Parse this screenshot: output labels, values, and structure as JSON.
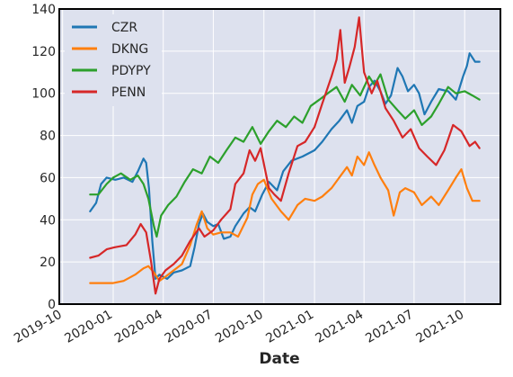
{
  "chart_data": {
    "type": "line",
    "title": "",
    "xlabel": "Date",
    "ylabel": "",
    "ylim": [
      0,
      140
    ],
    "yticks": [
      0,
      20,
      40,
      60,
      80,
      100,
      120,
      140
    ],
    "xticks": [
      "2019-10",
      "2020-01",
      "2020-04",
      "2020-07",
      "2020-10",
      "2021-01",
      "2021-04",
      "2021-07",
      "2021-10"
    ],
    "xlim": [
      "2019-09-25",
      "2021-12-05"
    ],
    "grid": true,
    "legend_position": "top-left",
    "background_color": "#dde1ee",
    "series": [
      {
        "name": "CZR",
        "color": "#1f77b4",
        "points": [
          [
            "2019-11-20",
            44
          ],
          [
            "2019-12-01",
            48
          ],
          [
            "2019-12-10",
            57
          ],
          [
            "2019-12-20",
            60
          ],
          [
            "2020-01-05",
            59
          ],
          [
            "2020-01-20",
            60
          ],
          [
            "2020-02-05",
            58
          ],
          [
            "2020-02-15",
            63
          ],
          [
            "2020-02-25",
            69
          ],
          [
            "2020-03-01",
            67
          ],
          [
            "2020-03-06",
            55
          ],
          [
            "2020-03-12",
            30
          ],
          [
            "2020-03-18",
            12
          ],
          [
            "2020-03-25",
            14
          ],
          [
            "2020-04-08",
            12
          ],
          [
            "2020-04-20",
            15
          ],
          [
            "2020-05-05",
            16
          ],
          [
            "2020-05-20",
            18
          ],
          [
            "2020-05-28",
            27
          ],
          [
            "2020-06-05",
            38
          ],
          [
            "2020-06-12",
            43
          ],
          [
            "2020-06-20",
            39
          ],
          [
            "2020-07-01",
            37
          ],
          [
            "2020-07-10",
            38
          ],
          [
            "2020-07-20",
            31
          ],
          [
            "2020-08-01",
            32
          ],
          [
            "2020-08-10",
            37
          ],
          [
            "2020-08-25",
            43
          ],
          [
            "2020-09-05",
            46
          ],
          [
            "2020-09-15",
            44
          ],
          [
            "2020-09-28",
            52
          ],
          [
            "2020-10-10",
            58
          ],
          [
            "2020-10-25",
            54
          ],
          [
            "2020-11-05",
            63
          ],
          [
            "2020-11-20",
            68
          ],
          [
            "2020-12-10",
            70
          ],
          [
            "2021-01-01",
            73
          ],
          [
            "2021-01-15",
            77
          ],
          [
            "2021-02-01",
            83
          ],
          [
            "2021-02-15",
            87
          ],
          [
            "2021-03-01",
            92
          ],
          [
            "2021-03-10",
            86
          ],
          [
            "2021-03-20",
            94
          ],
          [
            "2021-04-01",
            96
          ],
          [
            "2021-04-10",
            103
          ],
          [
            "2021-04-20",
            106
          ],
          [
            "2021-05-01",
            101
          ],
          [
            "2021-05-10",
            95
          ],
          [
            "2021-05-20",
            99
          ],
          [
            "2021-06-01",
            112
          ],
          [
            "2021-06-10",
            108
          ],
          [
            "2021-06-20",
            101
          ],
          [
            "2021-07-01",
            104
          ],
          [
            "2021-07-10",
            100
          ],
          [
            "2021-07-20",
            90
          ],
          [
            "2021-08-01",
            96
          ],
          [
            "2021-08-15",
            102
          ],
          [
            "2021-09-01",
            101
          ],
          [
            "2021-09-15",
            97
          ],
          [
            "2021-09-28",
            108
          ],
          [
            "2021-10-05",
            113
          ],
          [
            "2021-10-10",
            119
          ],
          [
            "2021-10-20",
            115
          ],
          [
            "2021-10-28",
            115
          ]
        ]
      },
      {
        "name": "DKNG",
        "color": "#ff7f0e",
        "points": [
          [
            "2019-11-20",
            10
          ],
          [
            "2019-12-15",
            10
          ],
          [
            "2020-01-01",
            10
          ],
          [
            "2020-01-20",
            11
          ],
          [
            "2020-02-10",
            14
          ],
          [
            "2020-02-25",
            17
          ],
          [
            "2020-03-05",
            18
          ],
          [
            "2020-03-15",
            15
          ],
          [
            "2020-03-25",
            11
          ],
          [
            "2020-04-05",
            13
          ],
          [
            "2020-04-20",
            16
          ],
          [
            "2020-05-05",
            19
          ],
          [
            "2020-05-20",
            28
          ],
          [
            "2020-06-01",
            38
          ],
          [
            "2020-06-10",
            44
          ],
          [
            "2020-06-20",
            36
          ],
          [
            "2020-07-01",
            33
          ],
          [
            "2020-07-15",
            34
          ],
          [
            "2020-08-01",
            34
          ],
          [
            "2020-08-15",
            32
          ],
          [
            "2020-09-01",
            41
          ],
          [
            "2020-09-10",
            52
          ],
          [
            "2020-09-20",
            57
          ],
          [
            "2020-10-01",
            59
          ],
          [
            "2020-10-15",
            50
          ],
          [
            "2020-11-01",
            44
          ],
          [
            "2020-11-15",
            40
          ],
          [
            "2020-12-01",
            47
          ],
          [
            "2020-12-15",
            50
          ],
          [
            "2021-01-01",
            49
          ],
          [
            "2021-01-15",
            51
          ],
          [
            "2021-02-01",
            55
          ],
          [
            "2021-02-15",
            60
          ],
          [
            "2021-03-01",
            65
          ],
          [
            "2021-03-10",
            61
          ],
          [
            "2021-03-20",
            70
          ],
          [
            "2021-04-01",
            66
          ],
          [
            "2021-04-10",
            72
          ],
          [
            "2021-04-20",
            66
          ],
          [
            "2021-05-01",
            60
          ],
          [
            "2021-05-15",
            54
          ],
          [
            "2021-05-25",
            42
          ],
          [
            "2021-06-05",
            53
          ],
          [
            "2021-06-15",
            55
          ],
          [
            "2021-07-01",
            53
          ],
          [
            "2021-07-15",
            47
          ],
          [
            "2021-08-01",
            51
          ],
          [
            "2021-08-15",
            47
          ],
          [
            "2021-09-01",
            54
          ],
          [
            "2021-09-15",
            60
          ],
          [
            "2021-09-25",
            64
          ],
          [
            "2021-10-05",
            55
          ],
          [
            "2021-10-15",
            49
          ],
          [
            "2021-10-28",
            49
          ]
        ]
      },
      {
        "name": "PDYPY",
        "color": "#2ca02c",
        "points": [
          [
            "2019-11-20",
            52
          ],
          [
            "2019-12-05",
            52
          ],
          [
            "2019-12-20",
            57
          ],
          [
            "2020-01-01",
            60
          ],
          [
            "2020-01-15",
            62
          ],
          [
            "2020-02-01",
            59
          ],
          [
            "2020-02-15",
            61
          ],
          [
            "2020-02-25",
            57
          ],
          [
            "2020-03-05",
            50
          ],
          [
            "2020-03-15",
            37
          ],
          [
            "2020-03-20",
            32
          ],
          [
            "2020-03-28",
            42
          ],
          [
            "2020-04-10",
            47
          ],
          [
            "2020-04-25",
            51
          ],
          [
            "2020-05-10",
            58
          ],
          [
            "2020-05-25",
            64
          ],
          [
            "2020-06-10",
            62
          ],
          [
            "2020-06-25",
            70
          ],
          [
            "2020-07-10",
            67
          ],
          [
            "2020-07-25",
            73
          ],
          [
            "2020-08-10",
            79
          ],
          [
            "2020-08-25",
            77
          ],
          [
            "2020-09-10",
            84
          ],
          [
            "2020-09-25",
            76
          ],
          [
            "2020-10-10",
            82
          ],
          [
            "2020-10-25",
            87
          ],
          [
            "2020-11-10",
            84
          ],
          [
            "2020-11-25",
            89
          ],
          [
            "2020-12-10",
            86
          ],
          [
            "2020-12-25",
            94
          ],
          [
            "2021-01-10",
            97
          ],
          [
            "2021-01-25",
            100
          ],
          [
            "2021-02-10",
            103
          ],
          [
            "2021-02-25",
            96
          ],
          [
            "2021-03-10",
            104
          ],
          [
            "2021-03-25",
            99
          ],
          [
            "2021-04-10",
            108
          ],
          [
            "2021-04-20",
            104
          ],
          [
            "2021-05-01",
            109
          ],
          [
            "2021-05-15",
            97
          ],
          [
            "2021-06-01",
            92
          ],
          [
            "2021-06-15",
            88
          ],
          [
            "2021-07-01",
            92
          ],
          [
            "2021-07-15",
            85
          ],
          [
            "2021-08-01",
            89
          ],
          [
            "2021-08-15",
            95
          ],
          [
            "2021-09-01",
            103
          ],
          [
            "2021-09-15",
            100
          ],
          [
            "2021-10-01",
            101
          ],
          [
            "2021-10-15",
            99
          ],
          [
            "2021-10-28",
            97
          ]
        ]
      },
      {
        "name": "PENN",
        "color": "#d62728",
        "points": [
          [
            "2019-11-20",
            22
          ],
          [
            "2019-12-05",
            23
          ],
          [
            "2019-12-20",
            26
          ],
          [
            "2020-01-05",
            27
          ],
          [
            "2020-01-25",
            28
          ],
          [
            "2020-02-10",
            33
          ],
          [
            "2020-02-20",
            38
          ],
          [
            "2020-03-01",
            34
          ],
          [
            "2020-03-10",
            20
          ],
          [
            "2020-03-18",
            5
          ],
          [
            "2020-03-25",
            12
          ],
          [
            "2020-04-05",
            16
          ],
          [
            "2020-04-20",
            19
          ],
          [
            "2020-05-05",
            23
          ],
          [
            "2020-05-20",
            30
          ],
          [
            "2020-06-05",
            36
          ],
          [
            "2020-06-15",
            32
          ],
          [
            "2020-07-01",
            35
          ],
          [
            "2020-07-15",
            40
          ],
          [
            "2020-08-01",
            45
          ],
          [
            "2020-08-10",
            57
          ],
          [
            "2020-08-25",
            62
          ],
          [
            "2020-09-05",
            73
          ],
          [
            "2020-09-15",
            68
          ],
          [
            "2020-09-25",
            74
          ],
          [
            "2020-10-10",
            55
          ],
          [
            "2020-10-20",
            52
          ],
          [
            "2020-11-01",
            49
          ],
          [
            "2020-11-15",
            62
          ],
          [
            "2020-12-01",
            75
          ],
          [
            "2020-12-15",
            77
          ],
          [
            "2021-01-01",
            84
          ],
          [
            "2021-01-15",
            95
          ],
          [
            "2021-02-01",
            108
          ],
          [
            "2021-02-10",
            116
          ],
          [
            "2021-02-17",
            130
          ],
          [
            "2021-02-25",
            105
          ],
          [
            "2021-03-05",
            112
          ],
          [
            "2021-03-15",
            122
          ],
          [
            "2021-03-23",
            136
          ],
          [
            "2021-04-01",
            110
          ],
          [
            "2021-04-15",
            100
          ],
          [
            "2021-04-25",
            106
          ],
          [
            "2021-05-10",
            93
          ],
          [
            "2021-05-25",
            87
          ],
          [
            "2021-06-10",
            79
          ],
          [
            "2021-06-25",
            83
          ],
          [
            "2021-07-10",
            74
          ],
          [
            "2021-07-25",
            70
          ],
          [
            "2021-08-10",
            66
          ],
          [
            "2021-08-25",
            73
          ],
          [
            "2021-09-10",
            85
          ],
          [
            "2021-09-25",
            82
          ],
          [
            "2021-10-10",
            75
          ],
          [
            "2021-10-20",
            77
          ],
          [
            "2021-10-28",
            74
          ]
        ]
      }
    ]
  }
}
